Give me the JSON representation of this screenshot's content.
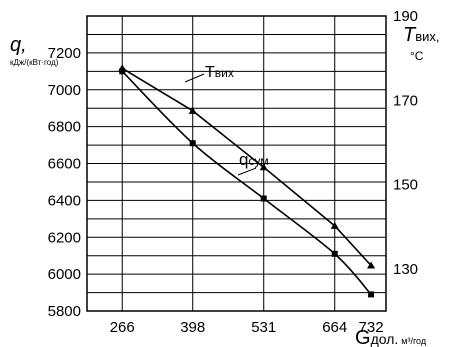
{
  "chart_data": {
    "type": "line",
    "x": [
      266,
      398,
      531,
      664,
      732
    ],
    "xticks": [
      "266",
      "398",
      "531",
      "664",
      "732"
    ],
    "xlim": [
      200,
      760
    ],
    "xlabel": {
      "main": "G",
      "sub": "дол.",
      "unit": "м³/год"
    },
    "y_left": {
      "label": "q,",
      "unit": "кДж/(кВт·год)",
      "lim": [
        5800,
        7400
      ],
      "ticks": [
        "7200",
        "7000",
        "6800",
        "6600",
        "6400",
        "6200",
        "6000",
        "5800"
      ]
    },
    "y_right": {
      "label": "T",
      "label_sub": "вих,",
      "unit": "°С",
      "lim": [
        120,
        190
      ],
      "ticks": [
        "190",
        "170",
        "150",
        "130"
      ]
    },
    "grid": true,
    "series": [
      {
        "name": "T",
        "name_sub": "вих",
        "axis": "right",
        "marker": "triangle",
        "values": [
          177.6,
          167.5,
          154.1,
          140.2,
          130.8
        ]
      },
      {
        "name": "q",
        "name_sub": "сум",
        "axis": "left",
        "marker": "square",
        "values": [
          7100,
          6710,
          6410,
          6110,
          5890
        ]
      }
    ]
  }
}
